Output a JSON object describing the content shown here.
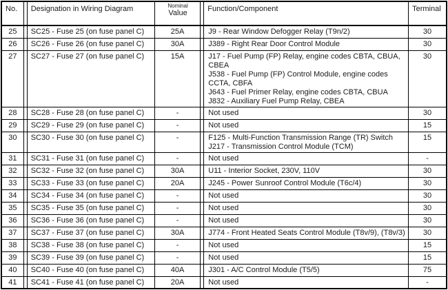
{
  "colors": {
    "border": "#000000",
    "text": "#1a1a1a",
    "background": "#ffffff"
  },
  "table": {
    "headers": {
      "no": "No.",
      "designation": "Designation in Wiring Diagram",
      "nominal": "Nominal",
      "value": "Value",
      "function": "Function/Component",
      "terminal": "Terminal"
    },
    "rows": [
      {
        "no": "25",
        "designation": "SC25 - Fuse 25 (on fuse panel C)",
        "value": "25A",
        "functions": [
          "J9 - Rear Window Defogger Relay (T9n/2)"
        ],
        "terminal": "30"
      },
      {
        "no": "26",
        "designation": "SC26 - Fuse 26 (on fuse panel C)",
        "value": "30A",
        "functions": [
          "J389 - Right Rear Door Control Module"
        ],
        "terminal": "30"
      },
      {
        "no": "27",
        "designation": "SC27 - Fuse 27 (on fuse panel C)",
        "value": "15A",
        "functions": [
          "J17 - Fuel Pump (FP) Relay, engine codes CBTA, CBUA, CBEA",
          "J538 - Fuel Pump (FP) Control Module, engine codes CCTA, CBFA",
          "J643 - Fuel Primer Relay, engine codes CBTA, CBUA",
          "J832 - Auxiliary Fuel Pump Relay, CBEA"
        ],
        "terminal": "30"
      },
      {
        "no": "28",
        "designation": "SC28 - Fuse 28 (on fuse panel C)",
        "value": "-",
        "functions": [
          "Not used"
        ],
        "terminal": "30"
      },
      {
        "no": "29",
        "designation": "SC29 - Fuse 29 (on fuse panel C)",
        "value": "-",
        "functions": [
          "Not used"
        ],
        "terminal": "15"
      },
      {
        "no": "30",
        "designation": "SC30 - Fuse 30 (on fuse panel C)",
        "value": "-",
        "functions": [
          "F125 - Multi-Function Transmission Range (TR) Switch",
          "J217 - Transmission Control Module (TCM)"
        ],
        "terminal": "15"
      },
      {
        "no": "31",
        "designation": "SC31 - Fuse 31 (on fuse panel C)",
        "value": "-",
        "functions": [
          "Not used"
        ],
        "terminal": "-"
      },
      {
        "no": "32",
        "designation": "SC32 - Fuse 32 (on fuse panel C)",
        "value": "30A",
        "functions": [
          "U11 - Interior Socket, 230V, 110V"
        ],
        "terminal": "30"
      },
      {
        "no": "33",
        "designation": "SC33 - Fuse 33 (on fuse panel C)",
        "value": "20A",
        "functions": [
          "J245 - Power Sunroof Control Module (T6c/4)"
        ],
        "terminal": "30"
      },
      {
        "no": "34",
        "designation": "SC34 - Fuse 34 (on fuse panel C)",
        "value": "-",
        "functions": [
          "Not used"
        ],
        "terminal": "30"
      },
      {
        "no": "35",
        "designation": "SC35 - Fuse 35 (on fuse panel C)",
        "value": "-",
        "functions": [
          "Not used"
        ],
        "terminal": "30"
      },
      {
        "no": "36",
        "designation": "SC36 - Fuse 36 (on fuse panel C)",
        "value": "-",
        "functions": [
          "Not used"
        ],
        "terminal": "30"
      },
      {
        "no": "37",
        "designation": "SC37 - Fuse 37 (on fuse panel C)",
        "value": "30A",
        "functions": [
          "J774 - Front Heated Seats Control Module (T8v/9), (T8v/3)"
        ],
        "terminal": "30"
      },
      {
        "no": "38",
        "designation": "SC38 - Fuse 38 (on fuse panel C)",
        "value": "-",
        "functions": [
          "Not used"
        ],
        "terminal": "15"
      },
      {
        "no": "39",
        "designation": "SC39 - Fuse 39 (on fuse panel C)",
        "value": "-",
        "functions": [
          "Not used"
        ],
        "terminal": "15"
      },
      {
        "no": "40",
        "designation": "SC40 - Fuse 40 (on fuse panel C)",
        "value": "40A",
        "functions": [
          "J301 - A/C Control Module (T5/5)"
        ],
        "terminal": "75"
      },
      {
        "no": "41",
        "designation": "SC41 - Fuse 41 (on fuse panel C)",
        "value": "20A",
        "functions": [
          "Not used"
        ],
        "terminal": "-"
      }
    ]
  }
}
